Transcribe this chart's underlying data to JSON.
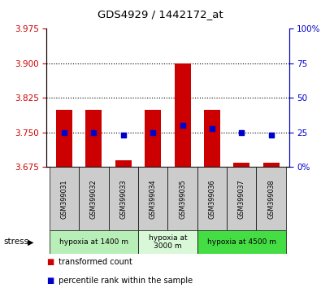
{
  "title": "GDS4929 / 1442172_at",
  "samples": [
    "GSM399031",
    "GSM399032",
    "GSM399033",
    "GSM399034",
    "GSM399035",
    "GSM399036",
    "GSM399037",
    "GSM399038"
  ],
  "bar_bottom": 3.675,
  "bar_tops": [
    3.8,
    3.8,
    3.69,
    3.8,
    3.9,
    3.8,
    3.684,
    3.684
  ],
  "percentile_values": [
    25,
    25,
    23,
    25,
    30,
    28,
    25,
    23
  ],
  "ylim_left": [
    3.675,
    3.975
  ],
  "ylim_right": [
    0,
    100
  ],
  "yticks_left": [
    3.675,
    3.75,
    3.825,
    3.9,
    3.975
  ],
  "yticks_right": [
    0,
    25,
    50,
    75,
    100
  ],
  "hlines": [
    3.75,
    3.825,
    3.9
  ],
  "groups": [
    {
      "label": "hypoxia at 1400 m",
      "start": 0,
      "end": 3
    },
    {
      "label": "hypoxia at\n3000 m",
      "start": 3,
      "end": 5
    },
    {
      "label": "hypoxia at 4500 m",
      "start": 5,
      "end": 8
    }
  ],
  "group_colors": [
    "#b8eeb8",
    "#d8f8d8",
    "#44dd44"
  ],
  "bar_color": "#cc0000",
  "dot_color": "#0000cc",
  "bar_width": 0.55,
  "left_tick_color": "#cc0000",
  "right_tick_color": "#0000cc",
  "sample_bg_color": "#cccccc"
}
